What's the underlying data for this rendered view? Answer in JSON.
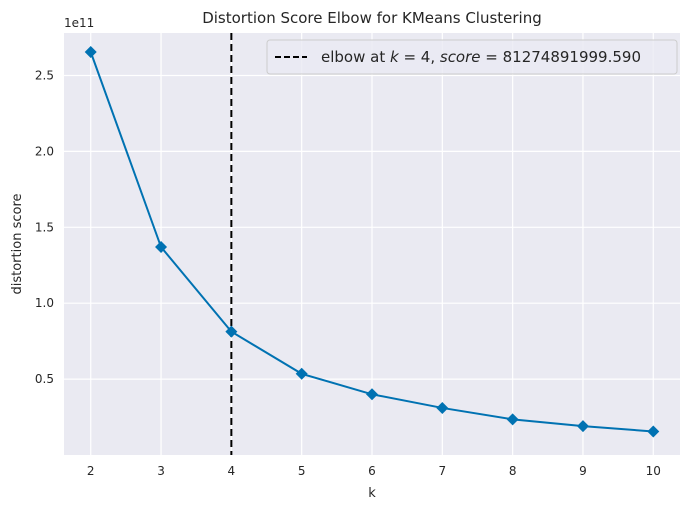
{
  "chart_data": {
    "type": "line",
    "title": "Distortion Score Elbow for KMeans Clustering",
    "xlabel": "k",
    "ylabel": "distortion score",
    "offset_text": "1e11",
    "x": [
      2,
      3,
      4,
      5,
      6,
      7,
      8,
      9,
      10
    ],
    "series": [
      {
        "values": [
          265500000000.0,
          137000000000.0,
          81275000000.0,
          53500000000.0,
          40000000000.0,
          31000000000.0,
          23500000000.0,
          19000000000.0,
          15500000000.0
        ],
        "color": "#0072b2",
        "marker": "diamond"
      }
    ],
    "xlim": [
      1.62,
      10.38
    ],
    "ylim": [
      0.0,
      278000000000.0
    ],
    "x_ticks": [
      2,
      3,
      4,
      5,
      6,
      7,
      8,
      9,
      10
    ],
    "y_ticks": [
      50000000000.0,
      100000000000.0,
      150000000000.0,
      200000000000.0,
      250000000000.0
    ],
    "y_tick_labels": [
      "0.5",
      "1.0",
      "1.5",
      "2.0",
      "2.5"
    ],
    "elbow": {
      "k": 4,
      "score_text": "81274891999.590",
      "color": "#000000",
      "style": "dashed"
    },
    "legend": {
      "position": "top-right",
      "prefix": "elbow at ",
      "k_var": "k",
      "equals": " = ",
      "k_value": "4",
      "sep": ", ",
      "score_var": "score",
      "score_value": "81274891999.590"
    },
    "background": "#eaeaf2",
    "grid": true
  }
}
